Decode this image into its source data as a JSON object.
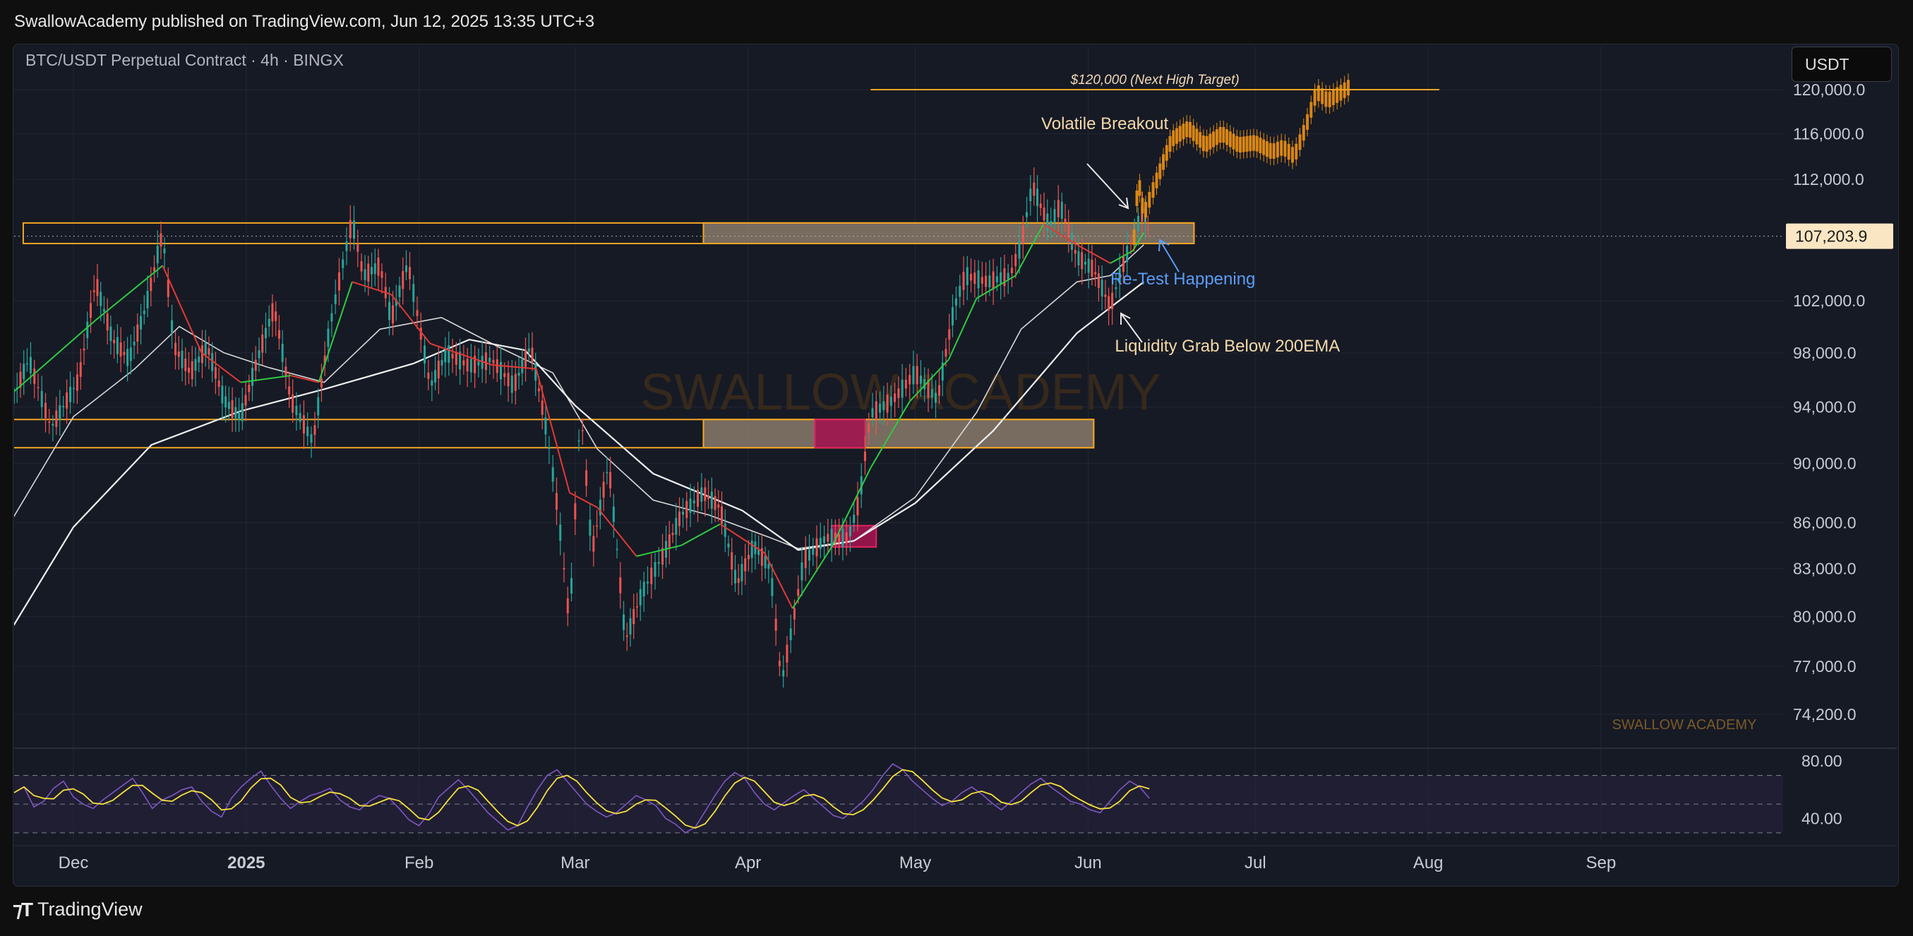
{
  "header": {
    "publisher_line": "SwallowAcademy published on TradingView.com, Jun 12, 2025 13:35 UTC+3"
  },
  "chart_header": {
    "symbol_line": "BTC/USDT Perpetual Contract · 4h · BINGX",
    "currency_button": "USDT"
  },
  "footer": {
    "brand": "TradingView"
  },
  "watermark": {
    "center": "SWALLOW ACADEMY",
    "corner": "SWALLOW ACADEMY"
  },
  "colors": {
    "background": "#161a25",
    "orange": "#f5a623",
    "gray_zone": "#8a7a6a",
    "magenta": "#a0154f",
    "ema_fast_red": "#e53935",
    "ema_fast_green": "#26a69a",
    "ema_white": "#f0f0f0",
    "rsi_line": "#7e57c2",
    "rsi_signal": "#f7e23b",
    "price_tag_bg": "#fbe6c3"
  },
  "chart_data": {
    "type": "line",
    "title": "BTC/USDT Perpetual Contract · 4h · BINGX",
    "xlabel": "",
    "ylabel": "",
    "y_scale": "log",
    "ylim": [
      72500,
      123500
    ],
    "x_ticks": [
      {
        "label": "Dec",
        "date": "2024-12-01"
      },
      {
        "label": "2025",
        "date": "2025-01-01"
      },
      {
        "label": "Feb",
        "date": "2025-02-01"
      },
      {
        "label": "Mar",
        "date": "2025-03-01"
      },
      {
        "label": "Apr",
        "date": "2025-04-01"
      },
      {
        "label": "May",
        "date": "2025-05-01"
      },
      {
        "label": "Jun",
        "date": "2025-06-01"
      },
      {
        "label": "Jul",
        "date": "2025-07-01"
      },
      {
        "label": "Aug",
        "date": "2025-08-01"
      },
      {
        "label": "Sep",
        "date": "2025-09-01"
      }
    ],
    "y_ticks": [
      "120,000.0",
      "116,000.0",
      "112,000.0",
      "102,000.0",
      "98,000.0",
      "94,000.0",
      "90,000.0",
      "86,000.0",
      "83,000.0",
      "80,000.0",
      "77,000.0",
      "74,200.0"
    ],
    "y_tick_values": [
      120000,
      116000,
      112000,
      102000,
      98000,
      94000,
      90000,
      86000,
      83000,
      80000,
      77000,
      74200
    ],
    "current_price": {
      "label": "107,203.9",
      "value": 107203.9
    },
    "series": [
      {
        "name": "",
        "role": "price",
        "points": [
          [
            "2024-11-20",
            94500
          ],
          [
            "2024-11-23",
            97500
          ],
          [
            "2024-11-27",
            92500
          ],
          [
            "2024-12-02",
            96000
          ],
          [
            "2024-12-05",
            103500
          ],
          [
            "2024-12-08",
            99000
          ],
          [
            "2024-12-11",
            97500
          ],
          [
            "2024-12-14",
            101500
          ],
          [
            "2024-12-17",
            107500
          ],
          [
            "2024-12-19",
            98500
          ],
          [
            "2024-12-22",
            96500
          ],
          [
            "2024-12-25",
            98500
          ],
          [
            "2024-12-28",
            94500
          ],
          [
            "2024-12-31",
            93200
          ],
          [
            "2025-01-03",
            97500
          ],
          [
            "2025-01-06",
            101500
          ],
          [
            "2025-01-09",
            94500
          ],
          [
            "2025-01-13",
            91500
          ],
          [
            "2025-01-16",
            100000
          ],
          [
            "2025-01-20",
            108500
          ],
          [
            "2025-01-22",
            104000
          ],
          [
            "2025-01-25",
            104800
          ],
          [
            "2025-01-27",
            100500
          ],
          [
            "2025-01-30",
            105000
          ],
          [
            "2025-02-03",
            95500
          ],
          [
            "2025-02-06",
            98000
          ],
          [
            "2025-02-10",
            97000
          ],
          [
            "2025-02-14",
            97500
          ],
          [
            "2025-02-18",
            95500
          ],
          [
            "2025-02-21",
            98500
          ],
          [
            "2025-02-24",
            92000
          ],
          [
            "2025-02-26",
            86500
          ],
          [
            "2025-02-28",
            79500
          ],
          [
            "2025-03-02",
            94000
          ],
          [
            "2025-03-04",
            84000
          ],
          [
            "2025-03-07",
            90000
          ],
          [
            "2025-03-10",
            78500
          ],
          [
            "2025-03-13",
            81500
          ],
          [
            "2025-03-17",
            84000
          ],
          [
            "2025-03-20",
            86500
          ],
          [
            "2025-03-24",
            88000
          ],
          [
            "2025-03-27",
            87000
          ],
          [
            "2025-03-30",
            82000
          ],
          [
            "2025-04-02",
            84500
          ],
          [
            "2025-04-05",
            83000
          ],
          [
            "2025-04-07",
            76000
          ],
          [
            "2025-04-09",
            79500
          ],
          [
            "2025-04-11",
            83500
          ],
          [
            "2025-04-15",
            85000
          ],
          [
            "2025-04-19",
            85000
          ],
          [
            "2025-04-21",
            87500
          ],
          [
            "2025-04-23",
            93500
          ],
          [
            "2025-04-27",
            94500
          ],
          [
            "2025-05-01",
            96500
          ],
          [
            "2025-05-05",
            94500
          ],
          [
            "2025-05-08",
            101500
          ],
          [
            "2025-05-10",
            104000
          ],
          [
            "2025-05-14",
            103500
          ],
          [
            "2025-05-18",
            104000
          ],
          [
            "2025-05-20",
            106500
          ],
          [
            "2025-05-22",
            111500
          ],
          [
            "2025-05-25",
            108000
          ],
          [
            "2025-05-27",
            109800
          ],
          [
            "2025-05-30",
            105500
          ],
          [
            "2025-06-02",
            104500
          ],
          [
            "2025-06-05",
            101500
          ],
          [
            "2025-06-07",
            104500
          ],
          [
            "2025-06-09",
            107000
          ],
          [
            "2025-06-11",
            109500
          ],
          [
            "2025-06-12",
            107203.9
          ]
        ]
      },
      {
        "name": "",
        "role": "projection",
        "points": [
          [
            "2025-06-09",
            105500
          ],
          [
            "2025-06-10",
            112000
          ],
          [
            "2025-06-11",
            109000
          ],
          [
            "2025-06-13",
            111500
          ],
          [
            "2025-06-16",
            115500
          ],
          [
            "2025-06-19",
            116500
          ],
          [
            "2025-06-22",
            115000
          ],
          [
            "2025-06-25",
            116000
          ],
          [
            "2025-06-28",
            115000
          ],
          [
            "2025-07-01",
            115200
          ],
          [
            "2025-07-04",
            114400
          ],
          [
            "2025-07-06",
            114800
          ],
          [
            "2025-07-08",
            114000
          ],
          [
            "2025-07-10",
            116500
          ],
          [
            "2025-07-12",
            119800
          ],
          [
            "2025-07-14",
            119000
          ],
          [
            "2025-07-16",
            119600
          ],
          [
            "2025-07-18",
            120300
          ]
        ]
      },
      {
        "name": "",
        "role": "ema_fast",
        "points": [
          [
            "2024-11-20",
            95000
          ],
          [
            "2024-12-05",
            100500
          ],
          [
            "2024-12-17",
            104800
          ],
          [
            "2024-12-24",
            98000
          ],
          [
            "2024-12-31",
            95800
          ],
          [
            "2025-01-09",
            96300
          ],
          [
            "2025-01-14",
            95800
          ],
          [
            "2025-01-20",
            103500
          ],
          [
            "2025-01-27",
            102500
          ],
          [
            "2025-02-03",
            98700
          ],
          [
            "2025-02-14",
            97100
          ],
          [
            "2025-02-22",
            96800
          ],
          [
            "2025-02-28",
            88000
          ],
          [
            "2025-03-05",
            87000
          ],
          [
            "2025-03-12",
            83800
          ],
          [
            "2025-03-20",
            84500
          ],
          [
            "2025-03-27",
            85900
          ],
          [
            "2025-04-04",
            84000
          ],
          [
            "2025-04-09",
            80500
          ],
          [
            "2025-04-16",
            84400
          ],
          [
            "2025-04-23",
            89700
          ],
          [
            "2025-04-30",
            94400
          ],
          [
            "2025-05-07",
            97500
          ],
          [
            "2025-05-12",
            102200
          ],
          [
            "2025-05-19",
            104000
          ],
          [
            "2025-05-24",
            108200
          ],
          [
            "2025-05-30",
            106500
          ],
          [
            "2025-06-05",
            105000
          ],
          [
            "2025-06-09",
            106000
          ],
          [
            "2025-06-11",
            107500
          ]
        ]
      },
      {
        "name": "",
        "role": "ema_mid",
        "points": [
          [
            "2024-11-20",
            86200
          ],
          [
            "2024-12-01",
            93300
          ],
          [
            "2024-12-12",
            96800
          ],
          [
            "2024-12-20",
            100000
          ],
          [
            "2024-12-28",
            98000
          ],
          [
            "2025-01-05",
            96900
          ],
          [
            "2025-01-15",
            95800
          ],
          [
            "2025-01-25",
            99800
          ],
          [
            "2025-02-05",
            100700
          ],
          [
            "2025-02-15",
            98500
          ],
          [
            "2025-02-25",
            96500
          ],
          [
            "2025-03-05",
            91000
          ],
          [
            "2025-03-15",
            87500
          ],
          [
            "2025-03-25",
            86500
          ],
          [
            "2025-04-05",
            85000
          ],
          [
            "2025-04-10",
            84300
          ],
          [
            "2025-04-20",
            84800
          ],
          [
            "2025-05-01",
            87700
          ],
          [
            "2025-05-12",
            93600
          ],
          [
            "2025-05-20",
            99800
          ],
          [
            "2025-05-30",
            103500
          ],
          [
            "2025-06-05",
            104000
          ],
          [
            "2025-06-11",
            106500
          ]
        ]
      },
      {
        "name": "",
        "role": "ema_slow",
        "points": [
          [
            "2024-11-20",
            79300
          ],
          [
            "2024-12-01",
            85700
          ],
          [
            "2024-12-15",
            91300
          ],
          [
            "2024-12-31",
            93700
          ],
          [
            "2025-01-15",
            95300
          ],
          [
            "2025-01-31",
            97200
          ],
          [
            "2025-02-10",
            99000
          ],
          [
            "2025-02-20",
            98200
          ],
          [
            "2025-03-01",
            94100
          ],
          [
            "2025-03-15",
            89300
          ],
          [
            "2025-03-31",
            86800
          ],
          [
            "2025-04-10",
            84200
          ],
          [
            "2025-04-20",
            84800
          ],
          [
            "2025-05-01",
            87300
          ],
          [
            "2025-05-15",
            92300
          ],
          [
            "2025-05-30",
            99500
          ],
          [
            "2025-06-11",
            103500
          ]
        ]
      }
    ],
    "zones": [
      {
        "name": "upper_resistance_top",
        "from": "2024-11-22",
        "to": "2025-06-20",
        "y_top": 108300,
        "y_bottom": 106600
      },
      {
        "name": "upper_resistance_filled",
        "from": "2025-03-24",
        "to": "2025-06-20",
        "y_top": 108300,
        "y_bottom": 106600
      },
      {
        "name": "lower_support_line",
        "from": "2024-11-20",
        "to": "2025-06-02",
        "y_top": 93100,
        "y_bottom": 91100
      },
      {
        "name": "lower_support_filled",
        "from": "2025-03-24",
        "to": "2025-06-02",
        "y_top": 93100,
        "y_bottom": 91100
      },
      {
        "name": "magenta_box_1",
        "from": "2025-04-13",
        "to": "2025-04-22",
        "y_top": 93100,
        "y_bottom": 91100
      },
      {
        "name": "magenta_box_2",
        "from": "2025-04-16",
        "to": "2025-04-24",
        "y_top": 85800,
        "y_bottom": 84400
      }
    ],
    "target_line": {
      "label": "$120,000 (Next High Target)",
      "value": 120000,
      "from": "2025-04-23",
      "to": "2025-08-03"
    },
    "annotations": [
      {
        "text": "Volatile Breakout",
        "date": "2025-06-04",
        "value": 116400
      },
      {
        "text": "Re-Test Happening",
        "date": "2025-06-18",
        "value": 103300
      },
      {
        "text": "Liquidity Grab Below 200EMA",
        "date": "2025-06-26",
        "value": 98100
      }
    ],
    "rsi": {
      "y_ticks": [
        "80.00",
        "40.00"
      ],
      "upper_band": 70,
      "lower_band": 30,
      "ylim": [
        25,
        85
      ],
      "values": [
        58,
        62,
        48,
        52,
        61,
        66,
        55,
        50,
        47,
        53,
        58,
        63,
        68,
        58,
        47,
        53,
        56,
        60,
        62,
        52,
        45,
        41,
        54,
        62,
        68,
        73,
        63,
        54,
        47,
        52,
        56,
        58,
        61,
        53,
        48,
        46,
        52,
        56,
        54,
        47,
        39,
        35,
        43,
        55,
        61,
        67,
        60,
        52,
        44,
        38,
        32,
        35,
        48,
        60,
        70,
        74,
        66,
        58,
        50,
        45,
        41,
        44,
        50,
        56,
        53,
        49,
        40,
        36,
        30,
        34,
        45,
        56,
        66,
        72,
        68,
        58,
        50,
        46,
        51,
        56,
        60,
        54,
        48,
        42,
        40,
        46,
        52,
        60,
        70,
        78,
        74,
        66,
        60,
        54,
        49,
        52,
        58,
        62,
        57,
        51,
        46,
        52,
        58,
        64,
        68,
        62,
        57,
        52,
        50,
        46,
        44,
        52,
        60,
        66,
        62,
        54
      ]
    }
  }
}
